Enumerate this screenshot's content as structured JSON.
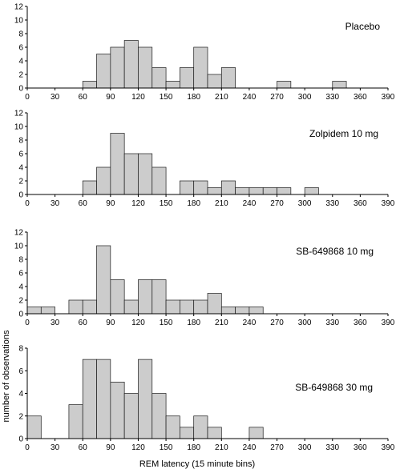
{
  "chart_data": [
    {
      "type": "bar",
      "title": "Placebo",
      "x_ticks": [
        0,
        30,
        60,
        90,
        120,
        150,
        180,
        210,
        240,
        270,
        300,
        330,
        360,
        390
      ],
      "y_ticks": [
        0,
        2,
        4,
        6,
        8,
        10,
        12
      ],
      "xlim": [
        0,
        390
      ],
      "ylim": [
        0,
        12
      ],
      "bin_width": 15,
      "bin_starts": [
        60,
        75,
        90,
        105,
        120,
        135,
        150,
        165,
        180,
        195,
        210,
        270,
        330
      ],
      "values": [
        1,
        5,
        6,
        7,
        6,
        3,
        1,
        3,
        6,
        2,
        3,
        1,
        1
      ]
    },
    {
      "type": "bar",
      "title": "Zolpidem 10 mg",
      "x_ticks": [
        0,
        30,
        60,
        90,
        120,
        150,
        180,
        210,
        240,
        270,
        300,
        330,
        360,
        390
      ],
      "y_ticks": [
        0,
        2,
        4,
        6,
        8,
        10,
        12
      ],
      "xlim": [
        0,
        390
      ],
      "ylim": [
        0,
        12
      ],
      "bin_width": 15,
      "bin_starts": [
        60,
        75,
        90,
        105,
        120,
        135,
        165,
        180,
        195,
        210,
        225,
        240,
        255,
        270,
        300
      ],
      "values": [
        2,
        4,
        9,
        6,
        6,
        4,
        2,
        2,
        1,
        2,
        1,
        1,
        1,
        1,
        1
      ]
    },
    {
      "type": "bar",
      "title": "SB-649868 10 mg",
      "x_ticks": [
        0,
        30,
        60,
        90,
        120,
        150,
        180,
        210,
        240,
        270,
        300,
        330,
        360,
        390
      ],
      "y_ticks": [
        0,
        2,
        4,
        6,
        8,
        10,
        12
      ],
      "xlim": [
        0,
        390
      ],
      "ylim": [
        0,
        12
      ],
      "bin_width": 15,
      "bin_starts": [
        0,
        15,
        45,
        60,
        75,
        90,
        105,
        120,
        135,
        150,
        165,
        180,
        195,
        210,
        225,
        240
      ],
      "values": [
        1,
        1,
        2,
        2,
        10,
        5,
        2,
        5,
        5,
        2,
        2,
        2,
        3,
        1,
        1,
        1
      ]
    },
    {
      "type": "bar",
      "title": "SB-649868 30 mg",
      "x_ticks": [
        0,
        30,
        60,
        90,
        120,
        150,
        180,
        210,
        240,
        270,
        300,
        330,
        360,
        390
      ],
      "y_ticks": [
        0,
        2,
        4,
        6,
        8
      ],
      "xlim": [
        0,
        390
      ],
      "ylim": [
        0,
        8
      ],
      "bin_width": 15,
      "bin_starts": [
        0,
        45,
        60,
        75,
        90,
        105,
        120,
        135,
        150,
        165,
        180,
        195,
        240
      ],
      "values": [
        2,
        3,
        7,
        7,
        5,
        4,
        7,
        4,
        2,
        1,
        2,
        1,
        1
      ]
    }
  ],
  "ylabel": "number of observations",
  "xlabel": "REM latency (15 minute bins)"
}
